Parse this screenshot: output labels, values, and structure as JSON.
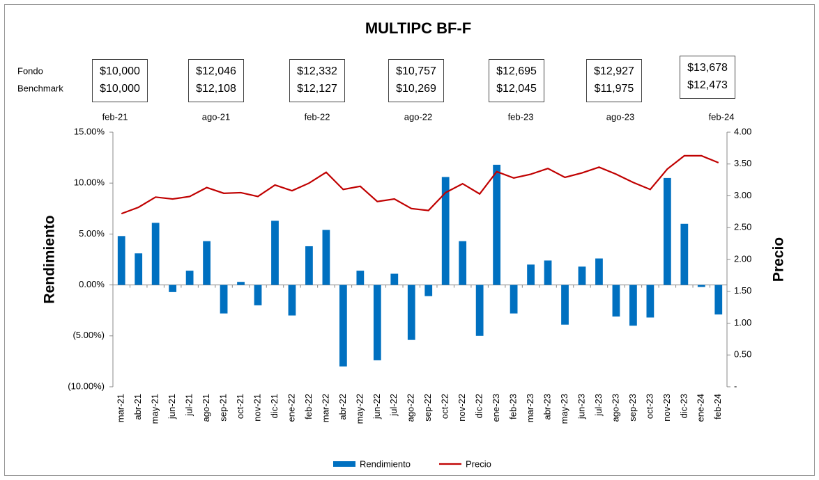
{
  "chart_data": {
    "type": "combo",
    "title": "MULTIPC BF-F",
    "row_labels": [
      "Fondo",
      "Benchmark"
    ],
    "snapshots": [
      {
        "date": "feb-21",
        "fondo": "$10,000",
        "benchmark": "$10,000"
      },
      {
        "date": "ago-21",
        "fondo": "$12,046",
        "benchmark": "$12,108"
      },
      {
        "date": "feb-22",
        "fondo": "$12,332",
        "benchmark": "$12,127"
      },
      {
        "date": "ago-22",
        "fondo": "$10,757",
        "benchmark": "$10,269"
      },
      {
        "date": "feb-23",
        "fondo": "$12,695",
        "benchmark": "$12,045"
      },
      {
        "date": "ago-23",
        "fondo": "$12,927",
        "benchmark": "$11,975"
      },
      {
        "date": "feb-24",
        "fondo": "$13,678",
        "benchmark": "$12,473"
      }
    ],
    "y_label": "Rendimiento",
    "y2_label": "Precio",
    "categories": [
      "mar-21",
      "abr-21",
      "may-21",
      "jun-21",
      "jul-21",
      "ago-21",
      "sep-21",
      "oct-21",
      "nov-21",
      "dic-21",
      "ene-22",
      "feb-22",
      "mar-22",
      "abr-22",
      "may-22",
      "jun-22",
      "jul-22",
      "ago-22",
      "sep-22",
      "oct-22",
      "nov-22",
      "dic-22",
      "ene-23",
      "feb-23",
      "mar-23",
      "abr-23",
      "may-23",
      "jun-23",
      "jul-23",
      "ago-23",
      "sep-23",
      "oct-23",
      "nov-23",
      "dic-23",
      "ene-24",
      "feb-24"
    ],
    "series": [
      {
        "name": "Rendimiento",
        "type": "bar",
        "color": "#0070c0",
        "axis": "y",
        "values": [
          4.8,
          3.1,
          6.1,
          -0.7,
          1.4,
          4.3,
          -2.8,
          0.3,
          -2.0,
          6.3,
          -3.0,
          3.8,
          5.4,
          -8.0,
          1.4,
          -7.4,
          1.1,
          -5.4,
          -1.1,
          10.6,
          4.3,
          -5.0,
          11.8,
          -2.8,
          2.0,
          2.4,
          -3.9,
          1.8,
          2.6,
          -3.1,
          -4.0,
          -3.2,
          10.5,
          6.0,
          -0.2,
          -2.9
        ]
      },
      {
        "name": "Precio",
        "type": "line",
        "color": "#c00000",
        "axis": "y2",
        "values": [
          2.72,
          2.82,
          2.98,
          2.95,
          2.99,
          3.13,
          3.04,
          3.05,
          2.99,
          3.17,
          3.08,
          3.2,
          3.37,
          3.1,
          3.15,
          2.91,
          2.95,
          2.8,
          2.77,
          3.05,
          3.19,
          3.03,
          3.38,
          3.28,
          3.34,
          3.43,
          3.29,
          3.36,
          3.45,
          3.34,
          3.21,
          3.1,
          3.42,
          3.63,
          3.63,
          3.52
        ]
      }
    ],
    "ylim": [
      -10,
      15
    ],
    "yticks": [
      {
        "value": -10,
        "label": "(10.00%)"
      },
      {
        "value": -5,
        "label": "(5.00%)"
      },
      {
        "value": 0,
        "label": "0.00%"
      },
      {
        "value": 5,
        "label": "5.00%"
      },
      {
        "value": 10,
        "label": "10.00%"
      },
      {
        "value": 15,
        "label": "15.00%"
      }
    ],
    "negative_tick_color": "#ff0000",
    "y2lim": [
      0,
      4
    ],
    "y2ticks": [
      {
        "value": 0,
        "label": "-"
      },
      {
        "value": 0.5,
        "label": "0.50"
      },
      {
        "value": 1,
        "label": "1.00"
      },
      {
        "value": 1.5,
        "label": "1.50"
      },
      {
        "value": 2,
        "label": "2.00"
      },
      {
        "value": 2.5,
        "label": "2.50"
      },
      {
        "value": 3,
        "label": "3.00"
      },
      {
        "value": 3.5,
        "label": "3.50"
      },
      {
        "value": 4,
        "label": "4.00"
      }
    ],
    "grid": false,
    "legend": "bottom"
  }
}
